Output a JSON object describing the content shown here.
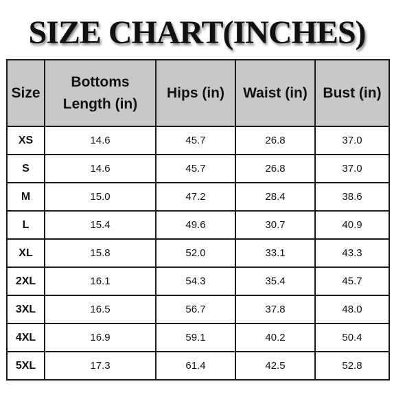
{
  "title": "SIZE CHART(INCHES)",
  "table": {
    "headers": [
      {
        "lines": [
          "Size"
        ]
      },
      {
        "lines": [
          "Bottoms",
          "Length (in)"
        ]
      },
      {
        "lines": [
          "Hips (in)"
        ]
      },
      {
        "lines": [
          "Waist (in)"
        ]
      },
      {
        "lines": [
          "Bust (in)"
        ]
      }
    ],
    "rows": [
      [
        "XS",
        "14.6",
        "45.7",
        "26.8",
        "37.0"
      ],
      [
        "S",
        "14.6",
        "45.7",
        "26.8",
        "37.0"
      ],
      [
        "M",
        "15.0",
        "47.2",
        "28.4",
        "38.6"
      ],
      [
        "L",
        "15.4",
        "49.6",
        "30.7",
        "40.9"
      ],
      [
        "XL",
        "15.8",
        "52.0",
        "33.1",
        "43.3"
      ],
      [
        "2XL",
        "16.1",
        "54.3",
        "35.4",
        "45.7"
      ],
      [
        "3XL",
        "16.5",
        "56.7",
        "37.8",
        "48.0"
      ],
      [
        "4XL",
        "16.9",
        "59.1",
        "40.2",
        "50.4"
      ],
      [
        "5XL",
        "17.3",
        "61.4",
        "42.5",
        "52.8"
      ]
    ]
  },
  "colors": {
    "header_background": "#c8c8c8",
    "border": "#1a1a1a",
    "text": "#111111"
  }
}
